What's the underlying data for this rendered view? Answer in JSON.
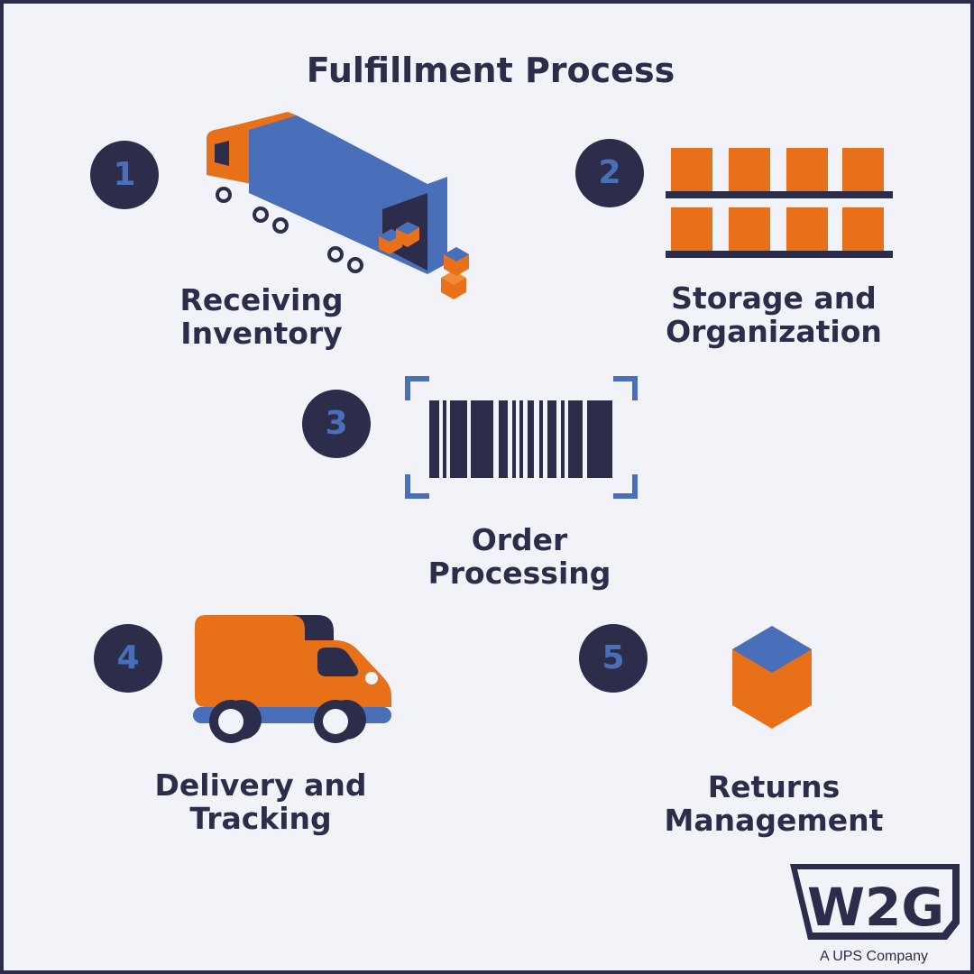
{
  "title": "Fulfillment Process",
  "colors": {
    "navy": "#2b2d4b",
    "blue": "#4a6fba",
    "orange": "#e87018",
    "background": "#f2f3f8"
  },
  "steps": [
    {
      "number": "1",
      "line1": "Receiving",
      "line2": "Inventory",
      "icon": "semi-truck-icon"
    },
    {
      "number": "2",
      "line1": "Storage and",
      "line2": "Organization",
      "icon": "shelves-icon"
    },
    {
      "number": "3",
      "line1": "Order",
      "line2": "Processing",
      "icon": "barcode-icon"
    },
    {
      "number": "4",
      "line1": "Delivery and",
      "line2": "Tracking",
      "icon": "delivery-van-icon"
    },
    {
      "number": "5",
      "line1": "Returns",
      "line2": "Management",
      "icon": "box-icon"
    }
  ],
  "logo": {
    "text": "W2G",
    "tagline": "A UPS Company"
  }
}
